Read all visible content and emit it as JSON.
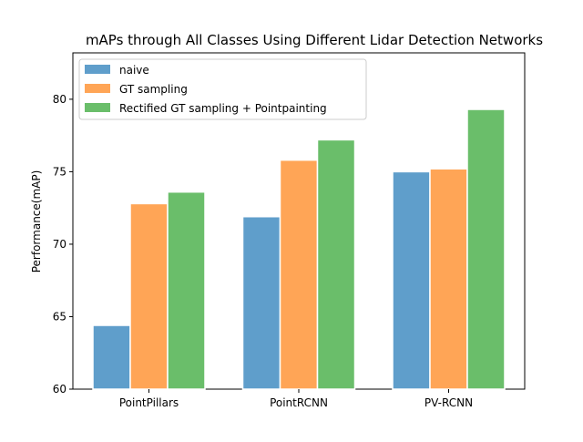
{
  "chart_data": {
    "type": "bar",
    "title": "mAPs through All Classes Using Different Lidar Detection Networks",
    "xlabel": "",
    "ylabel": "Performance(mAP)",
    "categories": [
      "PointPillars",
      "PointRCNN",
      "PV-RCNN"
    ],
    "series": [
      {
        "name": "naive",
        "color": "#5f9ecb",
        "values": [
          64.4,
          71.9,
          75.0
        ]
      },
      {
        "name": "GT sampling",
        "color": "#ffa556",
        "values": [
          72.8,
          75.8,
          75.2
        ]
      },
      {
        "name": "Rectified GT sampling + Pointpainting",
        "color": "#6abe6a",
        "values": [
          73.6,
          77.2,
          79.3
        ]
      }
    ],
    "ylim": [
      60,
      83.2
    ],
    "yticks": [
      60,
      65,
      70,
      75,
      80
    ],
    "grid": false,
    "legend_position": "upper-left"
  }
}
